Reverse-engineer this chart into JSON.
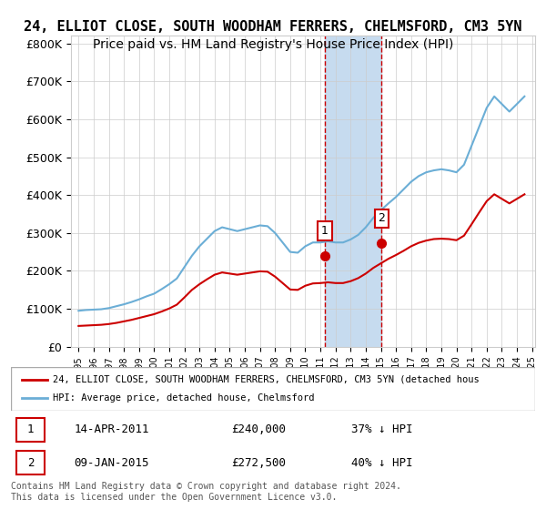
{
  "title": "24, ELLIOT CLOSE, SOUTH WOODHAM FERRERS, CHELMSFORD, CM3 5YN",
  "subtitle": "Price paid vs. HM Land Registry's House Price Index (HPI)",
  "ylabel_ticks": [
    "£0",
    "£100K",
    "£200K",
    "£300K",
    "£400K",
    "£500K",
    "£600K",
    "£700K",
    "£800K"
  ],
  "ytick_values": [
    0,
    100000,
    200000,
    300000,
    400000,
    500000,
    600000,
    700000,
    800000
  ],
  "ylim": [
    0,
    820000
  ],
  "sale1": {
    "date_num": 2011.29,
    "price": 240000,
    "label": "1",
    "text": "14-APR-2011",
    "amount": "£240,000",
    "pct": "37% ↓ HPI"
  },
  "sale2": {
    "date_num": 2015.04,
    "price": 272500,
    "label": "2",
    "text": "09-JAN-2015",
    "amount": "£272,500",
    "pct": "40% ↓ HPI"
  },
  "legend_line1": "24, ELLIOT CLOSE, SOUTH WOODHAM FERRERS, CHELMSFORD, CM3 5YN (detached hous",
  "legend_line2": "HPI: Average price, detached house, Chelmsford",
  "footer": "Contains HM Land Registry data © Crown copyright and database right 2024.\nThis data is licensed under the Open Government Licence v3.0.",
  "hpi_color": "#6baed6",
  "price_color": "#cc0000",
  "highlight_color": "#c6dbef",
  "vline_color": "#cc0000",
  "background_color": "#ffffff",
  "plot_bg_color": "#ffffff",
  "grid_color": "#cccccc",
  "title_fontsize": 11,
  "subtitle_fontsize": 10,
  "axis_fontsize": 9,
  "hpi_data": {
    "years": [
      1995.0,
      1995.5,
      1996.0,
      1996.5,
      1997.0,
      1997.5,
      1998.0,
      1998.5,
      1999.0,
      1999.5,
      2000.0,
      2000.5,
      2001.0,
      2001.5,
      2002.0,
      2002.5,
      2003.0,
      2003.5,
      2004.0,
      2004.5,
      2005.0,
      2005.5,
      2006.0,
      2006.5,
      2007.0,
      2007.5,
      2008.0,
      2008.5,
      2009.0,
      2009.5,
      2010.0,
      2010.5,
      2011.0,
      2011.5,
      2012.0,
      2012.5,
      2013.0,
      2013.5,
      2014.0,
      2014.5,
      2015.0,
      2015.5,
      2016.0,
      2016.5,
      2017.0,
      2017.5,
      2018.0,
      2018.5,
      2019.0,
      2019.5,
      2020.0,
      2020.5,
      2021.0,
      2021.5,
      2022.0,
      2022.5,
      2023.0,
      2023.5,
      2024.0,
      2024.5
    ],
    "values": [
      95000,
      97000,
      98000,
      99000,
      102000,
      107000,
      112000,
      118000,
      125000,
      133000,
      140000,
      152000,
      165000,
      180000,
      210000,
      240000,
      265000,
      285000,
      305000,
      315000,
      310000,
      305000,
      310000,
      315000,
      320000,
      318000,
      300000,
      275000,
      250000,
      248000,
      265000,
      275000,
      275000,
      278000,
      275000,
      275000,
      283000,
      295000,
      315000,
      340000,
      360000,
      378000,
      395000,
      415000,
      435000,
      450000,
      460000,
      465000,
      468000,
      465000,
      460000,
      480000,
      530000,
      580000,
      630000,
      660000,
      640000,
      620000,
      640000,
      660000
    ]
  },
  "price_data": {
    "years": [
      1995.0,
      1995.5,
      1996.0,
      1996.5,
      1997.0,
      1997.5,
      1998.0,
      1998.5,
      1999.0,
      1999.5,
      2000.0,
      2000.5,
      2001.0,
      2001.5,
      2002.0,
      2002.5,
      2003.0,
      2003.5,
      2004.0,
      2004.5,
      2005.0,
      2005.5,
      2006.0,
      2006.5,
      2007.0,
      2007.5,
      2008.0,
      2008.5,
      2009.0,
      2009.5,
      2010.0,
      2010.5,
      2011.0,
      2011.5,
      2012.0,
      2012.5,
      2013.0,
      2013.5,
      2014.0,
      2014.5,
      2015.0,
      2015.5,
      2016.0,
      2016.5,
      2017.0,
      2017.5,
      2018.0,
      2018.5,
      2019.0,
      2019.5,
      2020.0,
      2020.5,
      2021.0,
      2021.5,
      2022.0,
      2022.5,
      2023.0,
      2023.5,
      2024.0,
      2024.5
    ],
    "values": [
      55000,
      56000,
      57000,
      58000,
      60000,
      63000,
      67000,
      71000,
      76000,
      81000,
      86000,
      93000,
      101000,
      111000,
      130000,
      150000,
      165000,
      178000,
      190000,
      196000,
      193000,
      190000,
      193000,
      196000,
      199000,
      198000,
      185000,
      168000,
      151000,
      150000,
      161000,
      167000,
      168000,
      170000,
      168000,
      168000,
      173000,
      181000,
      193000,
      208000,
      220000,
      232000,
      242000,
      253000,
      265000,
      274000,
      280000,
      284000,
      285000,
      284000,
      281000,
      293000,
      323000,
      354000,
      384000,
      402000,
      390000,
      378000,
      390000,
      402000
    ]
  },
  "xtick_years": [
    1995,
    1996,
    1997,
    1998,
    1999,
    2000,
    2001,
    2002,
    2003,
    2004,
    2005,
    2006,
    2007,
    2008,
    2009,
    2010,
    2011,
    2012,
    2013,
    2014,
    2015,
    2016,
    2017,
    2018,
    2019,
    2020,
    2021,
    2022,
    2023,
    2024,
    2025
  ]
}
